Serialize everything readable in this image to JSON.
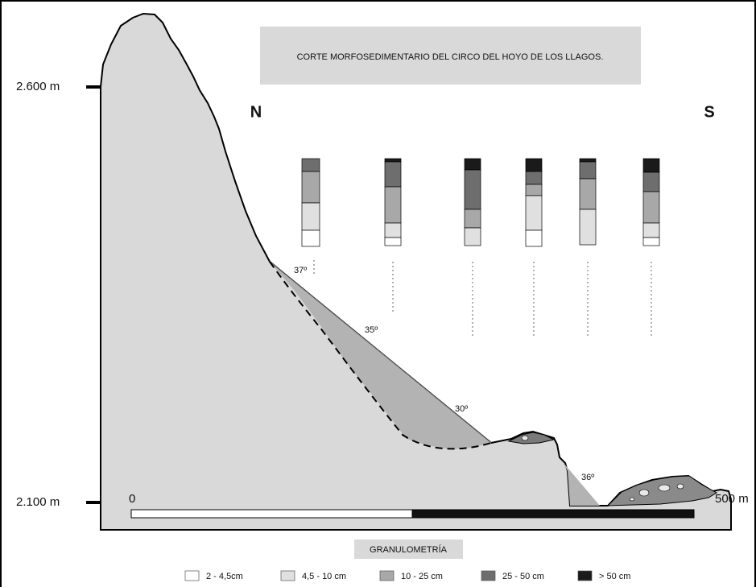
{
  "title": "CORTE MORFOSEDIMENTARIO DEL CIRCO DEL HOYO DE LOS LLAGOS.",
  "compass": {
    "north": "N",
    "south": "S"
  },
  "elevations": {
    "top": "2.600 m",
    "bottom": "2.100 m"
  },
  "scale": {
    "start": "0",
    "end": "500 m"
  },
  "slope_angles": [
    "37º",
    "35º",
    "30º",
    "36º"
  ],
  "legend": {
    "title": "GRANULOMETRÍA",
    "items": [
      "2 - 4,5cm",
      "4,5 - 10 cm",
      "10 - 25  cm",
      "25 - 50 cm",
      "> 50 cm"
    ]
  }
}
